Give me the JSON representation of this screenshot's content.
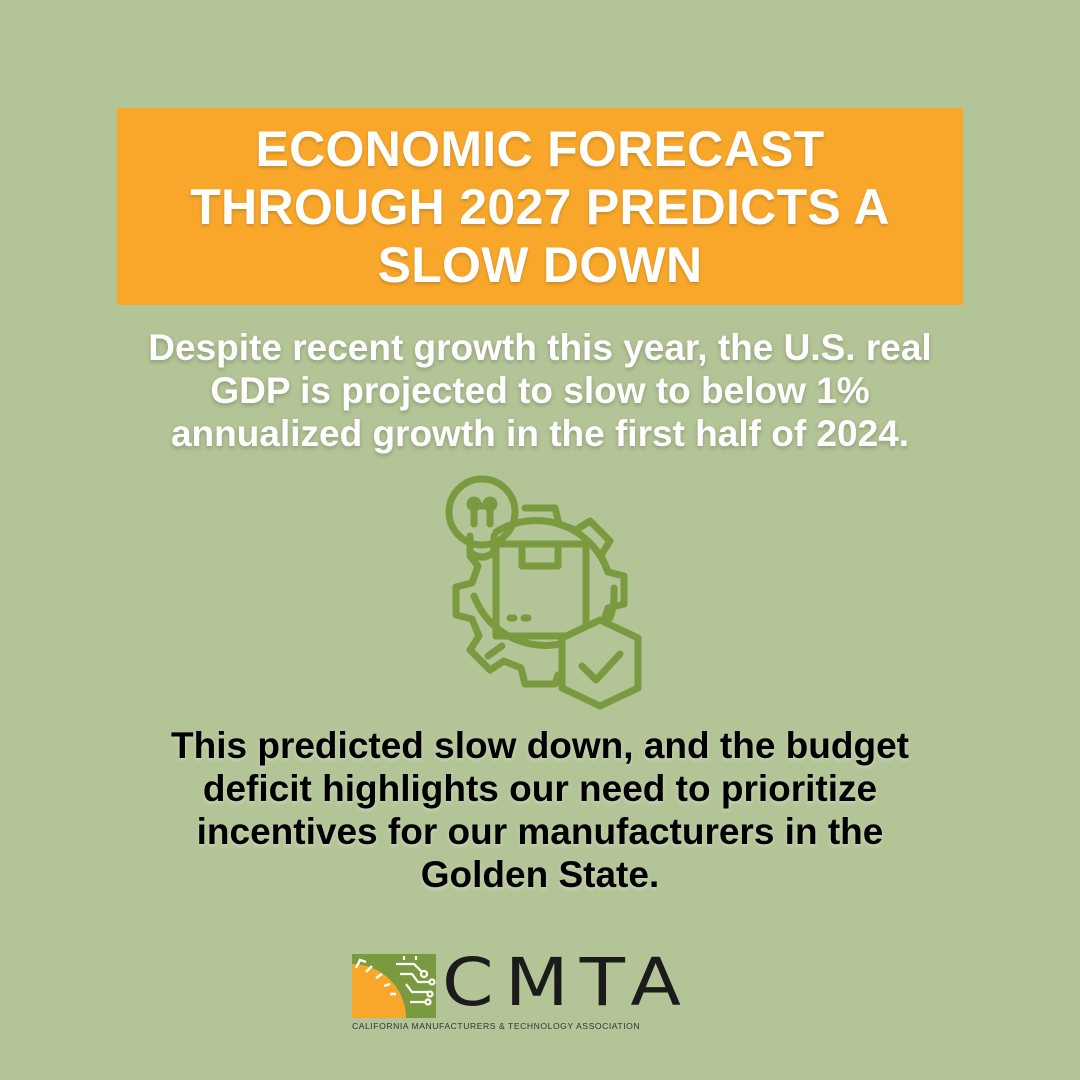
{
  "headline": "ECONOMIC FORECAST THROUGH 2027 PREDICTS A SLOW DOWN",
  "subtext": "Despite recent growth this year, the U.S. real GDP is projected to slow to below 1% annualized growth in the first half of 2024.",
  "body": "This predicted slow down, and the budget deficit highlights our need to prioritize incentives for our manufacturers in the Golden State.",
  "icon": {
    "name": "gear-lightbulb-box-shield-check-icon",
    "color": "#7a9a40"
  },
  "logo": {
    "wordmark": "CMTA",
    "tagline": "CALIFORNIA MANUFACTURERS & TECHNOLOGY ASSOCIATION",
    "colors": {
      "orange": "#f9a72a",
      "green": "#7a9a40",
      "text": "#1b1b1b"
    }
  },
  "colors": {
    "background": "#b3c496",
    "accent": "#f9a72a",
    "headline_text": "#ffffff",
    "body_text": "#000000"
  }
}
